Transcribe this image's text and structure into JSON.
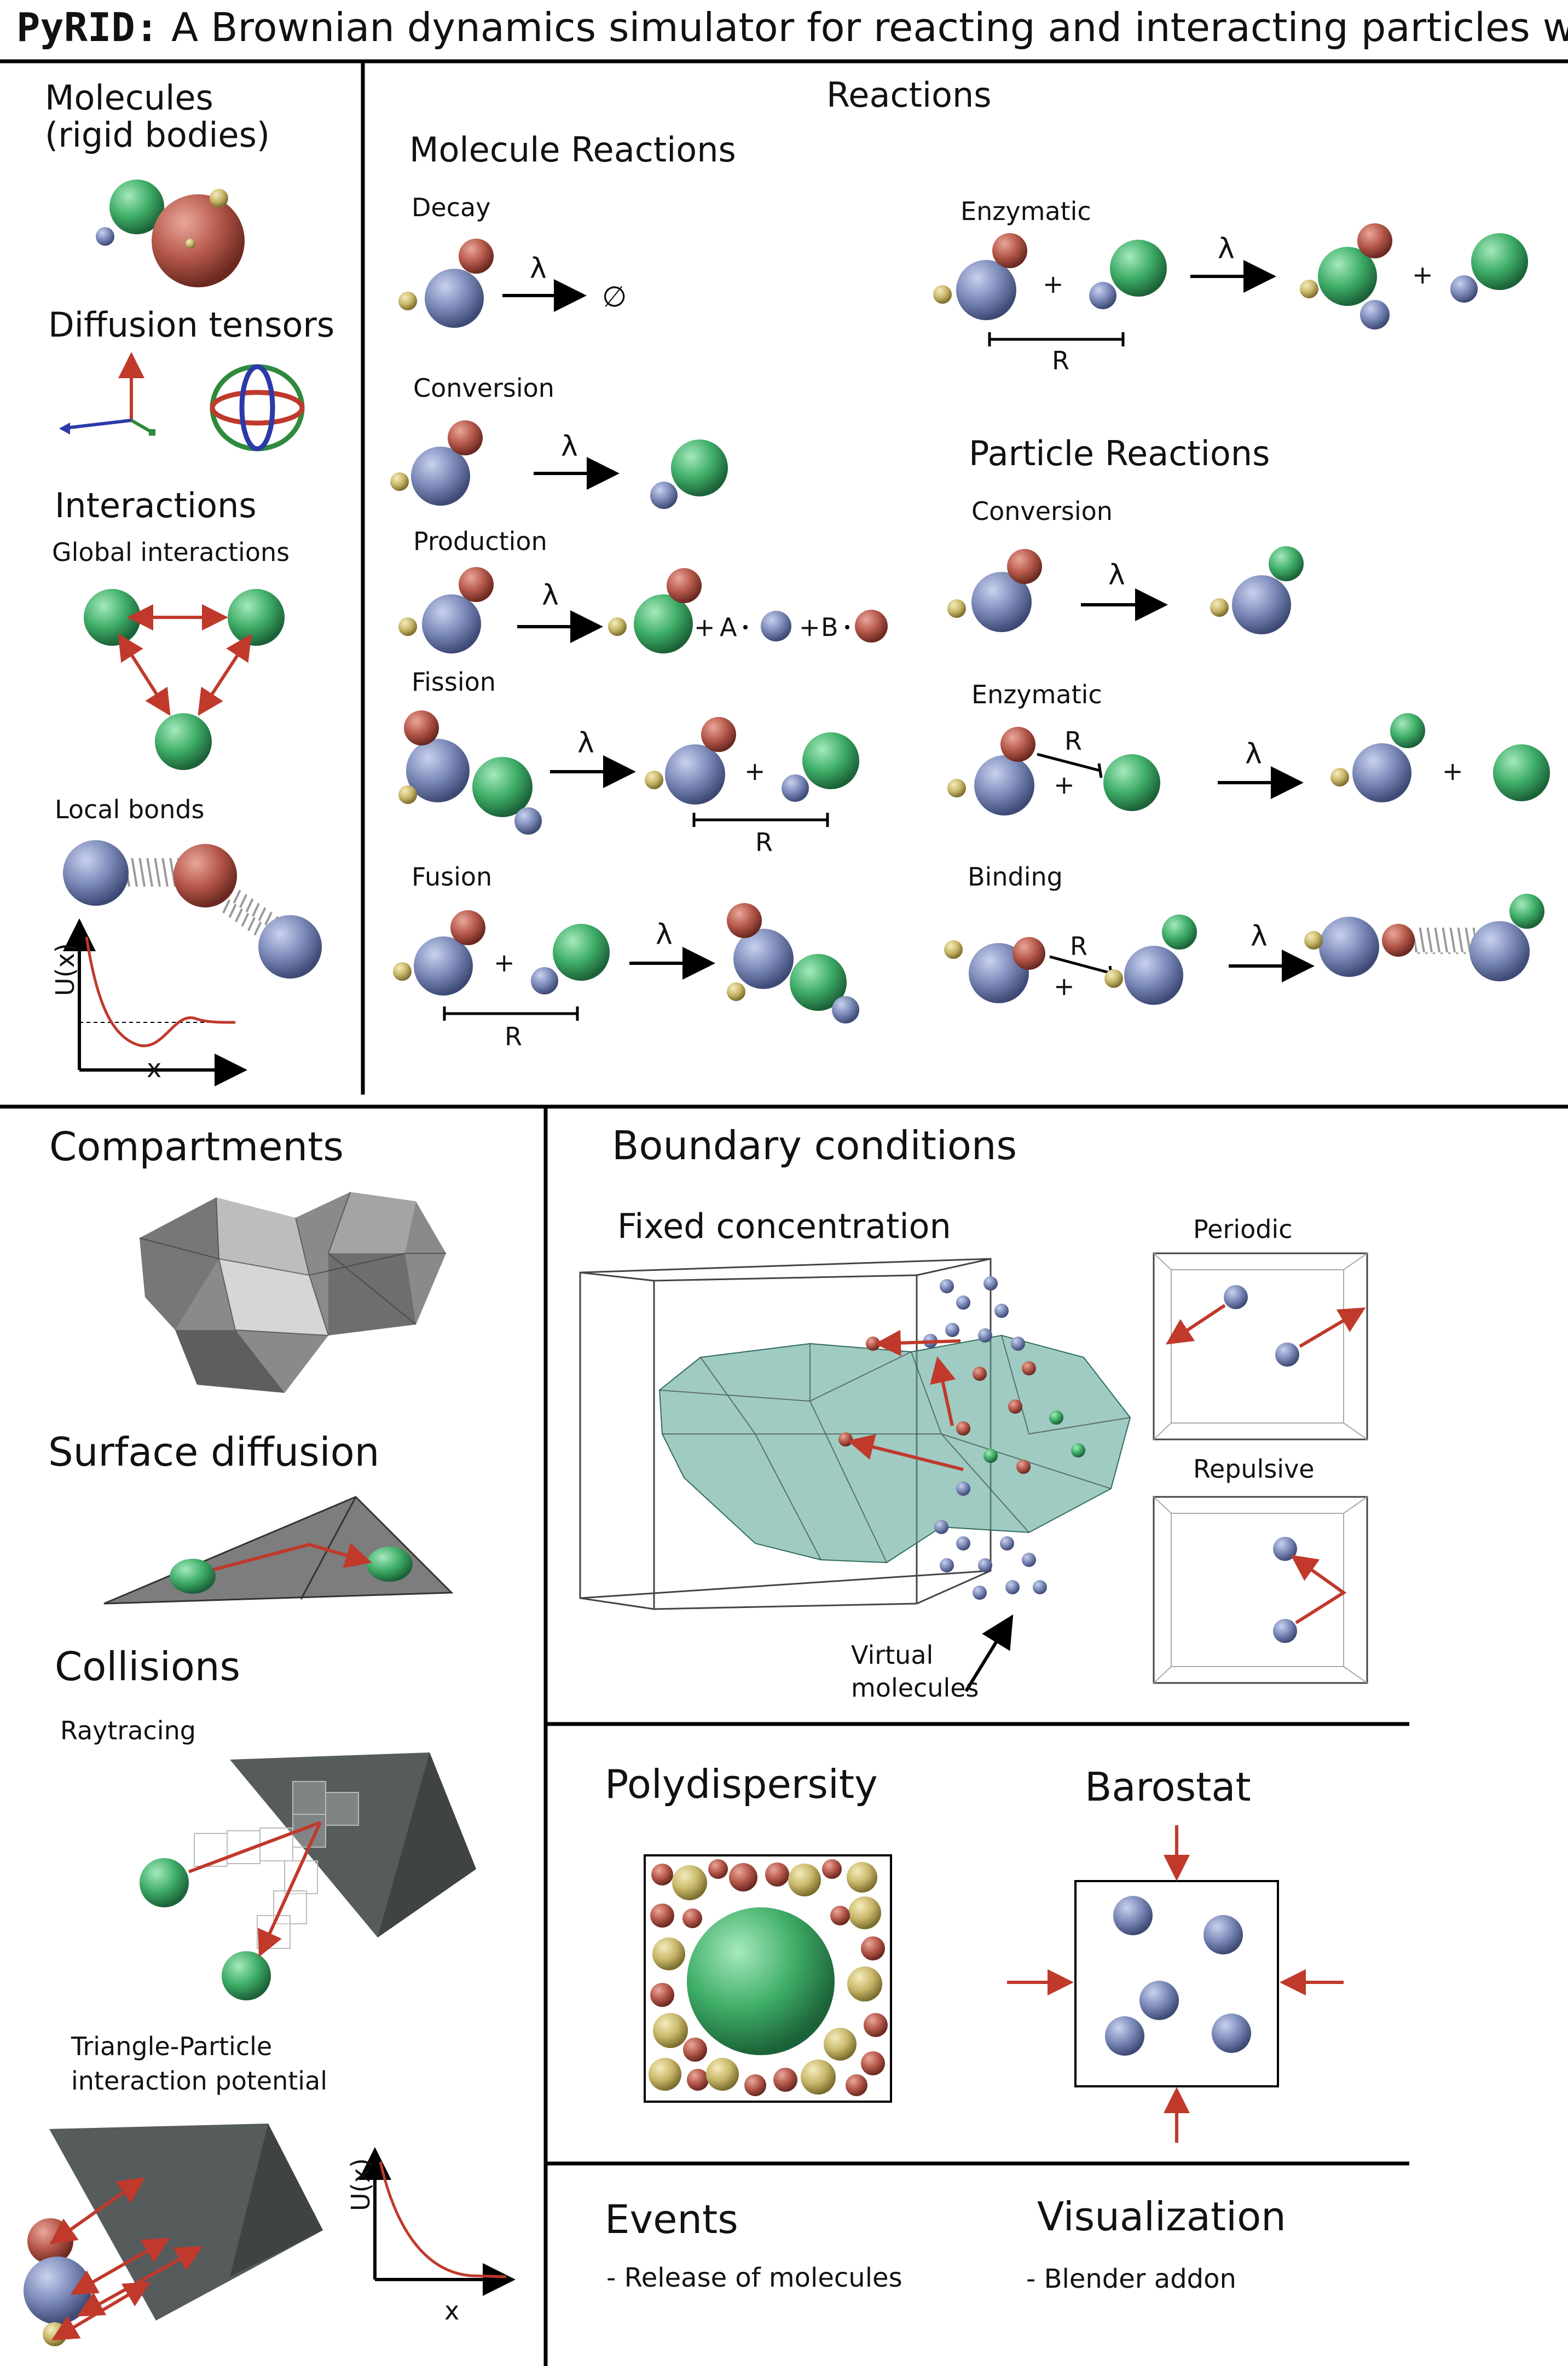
{
  "header": {
    "title_bold": "PyRID:",
    "title_rest": " A Brownian dynamics simulator for reacting and interacting particles written in python."
  },
  "left_panel": {
    "molecules_title_1": "Molecules",
    "molecules_title_2": "(rigid bodies)",
    "diffusion_title": "Diffusion tensors",
    "interactions_title": "Interactions",
    "global_interactions": "Global interactions",
    "local_bonds": "Local bonds",
    "plot_ylabel": "U(x)",
    "plot_xlabel": "x"
  },
  "reactions": {
    "title": "Reactions",
    "molecule_reactions_title": "Molecule Reactions",
    "particle_reactions_title": "Particle Reactions",
    "lambda": "λ",
    "empty_set": "∅",
    "plus": "+",
    "radius": "R",
    "decay": "Decay",
    "conversion": "Conversion",
    "production": "Production",
    "production_a": "A",
    "production_b": "B",
    "fission": "Fission",
    "fusion": "Fusion",
    "enzymatic": "Enzymatic",
    "p_conversion": "Conversion",
    "p_enzymatic": "Enzymatic",
    "binding": "Binding"
  },
  "bottom_left": {
    "compartments": "Compartments",
    "surface_diffusion": "Surface diffusion",
    "collisions": "Collisions",
    "raytracing": "Raytracing",
    "tri_particle_1": "Triangle-Particle",
    "tri_particle_2": "interaction potential",
    "plot_ylabel": "U(x)",
    "plot_xlabel": "x"
  },
  "boundary": {
    "title": "Boundary conditions",
    "fixed": "Fixed concentration",
    "periodic": "Periodic",
    "repulsive": "Repulsive",
    "virtual_1": "Virtual",
    "virtual_2": "molecules"
  },
  "polydispersity": {
    "title": "Polydispersity"
  },
  "barostat": {
    "title": "Barostat"
  },
  "events": {
    "title": "Events",
    "item": "- Release of molecules"
  },
  "visualization": {
    "title": "Visualization",
    "item": "- Blender addon"
  },
  "colors": {
    "blue": "#7b89b8",
    "red": "#b5584a",
    "green": "#3fae68",
    "yellow": "#c9b86a",
    "mesh_teal": "#5fa89a",
    "mesh_gray": "#8a8a8a",
    "arrow_red": "#c0392b"
  }
}
